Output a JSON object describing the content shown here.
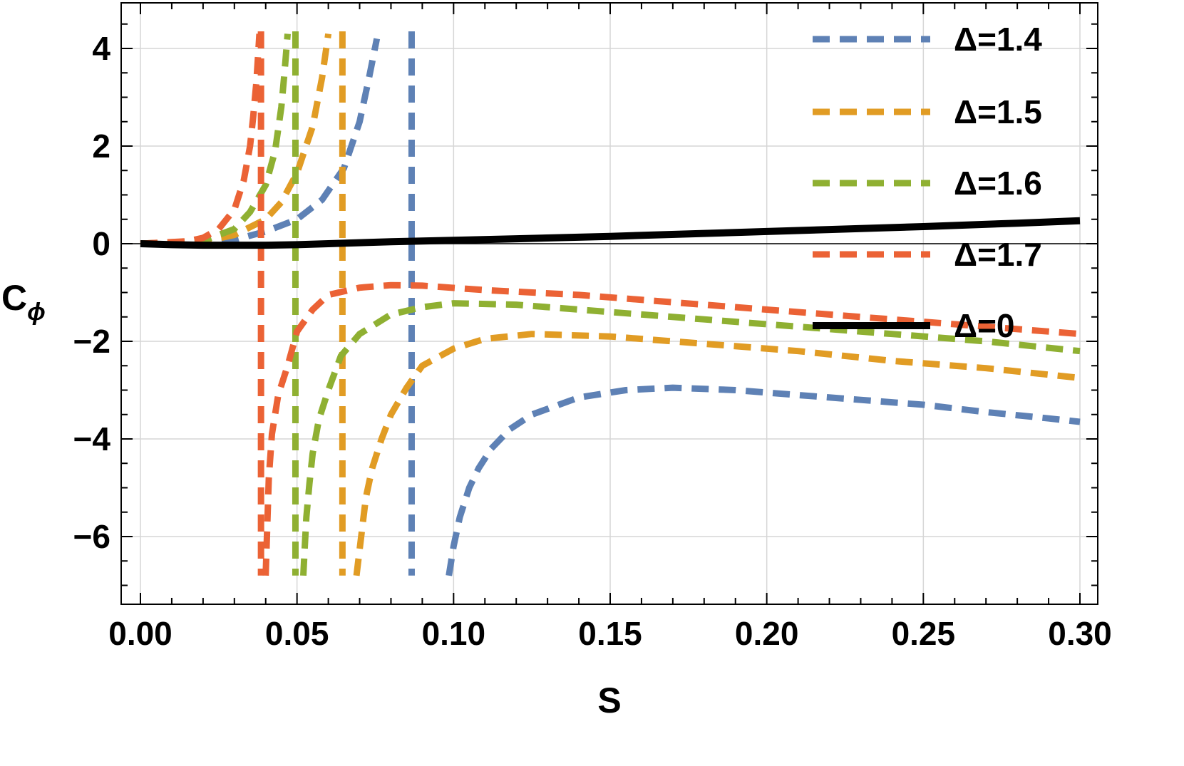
{
  "chart_data": {
    "type": "line",
    "title": "",
    "xlabel": "S",
    "ylabel": "C",
    "ylabel_subscript": "ϕ",
    "xlim": [
      0.0,
      0.3
    ],
    "ylim": [
      -7.4,
      5.0
    ],
    "grid": true,
    "legend_position": "top-right",
    "x_ticks": [
      0.0,
      0.05,
      0.1,
      0.15,
      0.2,
      0.25,
      0.3
    ],
    "x_tick_labels": [
      "0.00",
      "0.05",
      "0.10",
      "0.15",
      "0.20",
      "0.25",
      "0.30"
    ],
    "y_ticks": [
      4,
      2,
      0,
      -2,
      -4,
      -6
    ],
    "y_tick_labels": [
      "4",
      "2",
      "0",
      "−2",
      "−4",
      "−6"
    ],
    "series": [
      {
        "name": "Δ=1.4",
        "color": "#5e81b5",
        "style": "dashed",
        "asymptote": 0.0866,
        "branch_left": {
          "x": [
            0.0,
            0.02,
            0.03,
            0.04,
            0.05,
            0.058,
            0.065,
            0.07,
            0.073,
            0.0755
          ],
          "y": [
            0.0,
            0.02,
            0.08,
            0.25,
            0.5,
            0.9,
            1.55,
            2.5,
            3.4,
            4.2
          ]
        },
        "branch_right": {
          "x": [
            0.0985,
            0.1,
            0.102,
            0.105,
            0.108,
            0.112,
            0.118,
            0.125,
            0.14,
            0.155,
            0.17,
            0.19,
            0.21,
            0.23,
            0.25,
            0.27,
            0.29,
            0.3
          ],
          "y": [
            -6.8,
            -6.2,
            -5.6,
            -5.0,
            -4.6,
            -4.2,
            -3.8,
            -3.5,
            -3.15,
            -3.0,
            -2.95,
            -3.0,
            -3.1,
            -3.2,
            -3.3,
            -3.45,
            -3.58,
            -3.65
          ]
        }
      },
      {
        "name": "Δ=1.5",
        "color": "#e19c24",
        "style": "dashed",
        "asymptote": 0.0645,
        "branch_left": {
          "x": [
            0.0,
            0.02,
            0.03,
            0.04,
            0.045,
            0.05,
            0.055,
            0.058,
            0.06
          ],
          "y": [
            0.0,
            0.04,
            0.18,
            0.5,
            0.85,
            1.45,
            2.4,
            3.4,
            4.3
          ]
        },
        "branch_right": {
          "x": [
            0.069,
            0.0705,
            0.072,
            0.074,
            0.077,
            0.08,
            0.085,
            0.09,
            0.1,
            0.11,
            0.125,
            0.15,
            0.18,
            0.21,
            0.24,
            0.27,
            0.3
          ],
          "y": [
            -6.8,
            -6.0,
            -5.2,
            -4.6,
            -4.0,
            -3.5,
            -2.95,
            -2.5,
            -2.15,
            -1.95,
            -1.85,
            -1.9,
            -2.05,
            -2.2,
            -2.4,
            -2.55,
            -2.75
          ]
        }
      },
      {
        "name": "Δ=1.6",
        "color": "#8fb032",
        "style": "dashed",
        "asymptote": 0.0495,
        "branch_left": {
          "x": [
            0.0,
            0.02,
            0.03,
            0.035,
            0.04,
            0.043,
            0.045,
            0.046,
            0.047
          ],
          "y": [
            0.0,
            0.06,
            0.3,
            0.65,
            1.2,
            1.9,
            2.8,
            3.5,
            4.3
          ]
        },
        "branch_right": {
          "x": [
            0.052,
            0.0525,
            0.053,
            0.054,
            0.055,
            0.057,
            0.06,
            0.064,
            0.07,
            0.08,
            0.09,
            0.1,
            0.12,
            0.15,
            0.18,
            0.21,
            0.24,
            0.27,
            0.3
          ],
          "y": [
            -6.8,
            -6.2,
            -5.6,
            -4.9,
            -4.3,
            -3.6,
            -3.0,
            -2.3,
            -1.85,
            -1.45,
            -1.3,
            -1.22,
            -1.25,
            -1.4,
            -1.55,
            -1.7,
            -1.85,
            -2.0,
            -2.2
          ]
        }
      },
      {
        "name": "Δ=1.7",
        "color": "#eb6235",
        "style": "dashed",
        "asymptote": 0.0385,
        "branch_left": {
          "x": [
            0.0,
            0.015,
            0.02,
            0.025,
            0.03,
            0.033,
            0.035,
            0.036,
            0.037,
            0.0375,
            0.038
          ],
          "y": [
            0.0,
            0.05,
            0.12,
            0.3,
            0.7,
            1.3,
            2.0,
            2.6,
            3.3,
            3.8,
            4.3
          ]
        },
        "branch_right": {
          "x": [
            0.04,
            0.0405,
            0.041,
            0.042,
            0.044,
            0.047,
            0.05,
            0.055,
            0.06,
            0.07,
            0.08,
            0.09,
            0.11,
            0.14,
            0.17,
            0.2,
            0.23,
            0.26,
            0.3
          ],
          "y": [
            -6.8,
            -5.8,
            -4.8,
            -3.9,
            -3.1,
            -2.5,
            -1.8,
            -1.35,
            -1.05,
            -0.9,
            -0.85,
            -0.86,
            -0.95,
            -1.05,
            -1.2,
            -1.35,
            -1.5,
            -1.65,
            -1.85
          ]
        }
      },
      {
        "name": "Δ=0",
        "color": "#000000",
        "style": "solid",
        "x": [
          0.0,
          0.01,
          0.02,
          0.03,
          0.04,
          0.05,
          0.06,
          0.07,
          0.08,
          0.1,
          0.12,
          0.15,
          0.18,
          0.2,
          0.22,
          0.25,
          0.28,
          0.3
        ],
        "y": [
          0.0,
          -0.02,
          -0.03,
          -0.03,
          -0.03,
          -0.02,
          0.0,
          0.02,
          0.04,
          0.07,
          0.1,
          0.15,
          0.21,
          0.25,
          0.29,
          0.35,
          0.42,
          0.47
        ]
      }
    ]
  }
}
